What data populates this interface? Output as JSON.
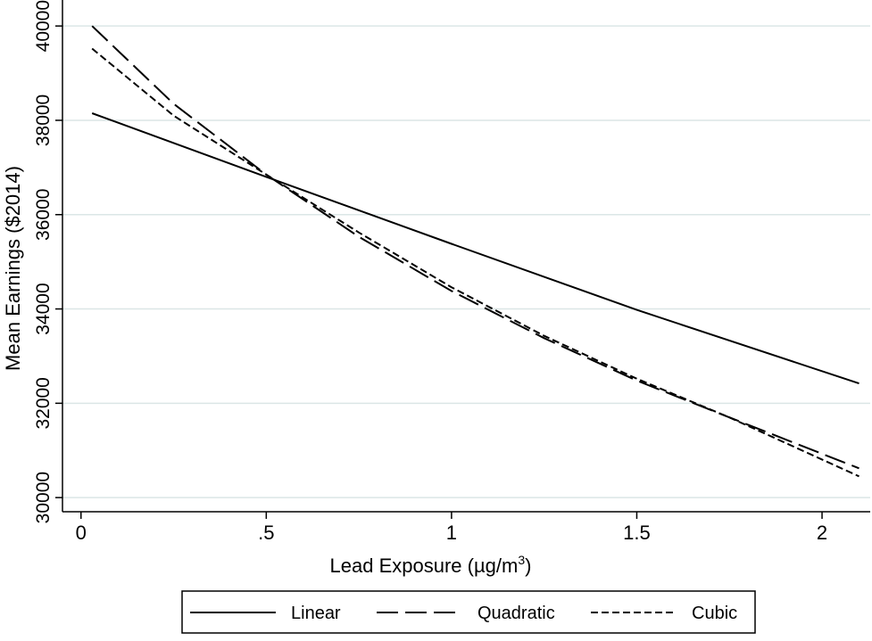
{
  "chart_data": {
    "type": "line",
    "title": "",
    "xlabel": "Lead Exposure (µg/m",
    "xlabel_superscript": "3",
    "xlabel_close": ")",
    "ylabel": "Mean Earnings ($2014)",
    "xlim": [
      -0.05,
      2.13
    ],
    "ylim": [
      29700,
      40400
    ],
    "x_ticks": [
      0,
      0.5,
      1,
      1.5,
      2
    ],
    "x_tick_labels": [
      "0",
      ".5",
      "1",
      "1.5",
      "2"
    ],
    "y_ticks": [
      30000,
      32000,
      34000,
      36000,
      38000,
      40000
    ],
    "y_tick_labels": [
      "30000",
      "32000",
      "34000",
      "36000",
      "38000",
      "40000"
    ],
    "grid": true,
    "legend_position": "bottom",
    "series": [
      {
        "name": "Linear",
        "dash": "solid",
        "x": [
          0.03,
          0.5,
          1.0,
          1.5,
          2.1
        ],
        "y": [
          38150,
          36800,
          35380,
          33980,
          32420
        ]
      },
      {
        "name": "Quadratic",
        "dash": "long",
        "x": [
          0.03,
          0.25,
          0.5,
          0.75,
          1.0,
          1.25,
          1.5,
          1.75,
          2.1
        ],
        "y": [
          40000,
          38350,
          36850,
          35530,
          34380,
          33380,
          32480,
          31700,
          30620
        ]
      },
      {
        "name": "Cubic",
        "dash": "short",
        "x": [
          0.03,
          0.25,
          0.5,
          0.75,
          1.0,
          1.25,
          1.5,
          1.75,
          2.1
        ],
        "y": [
          39520,
          38100,
          36850,
          35620,
          34460,
          33430,
          32520,
          31700,
          30450
        ]
      }
    ],
    "colors": {
      "lines": "#000000",
      "grid": "#dbe6e6",
      "background": "#ffffff"
    }
  }
}
